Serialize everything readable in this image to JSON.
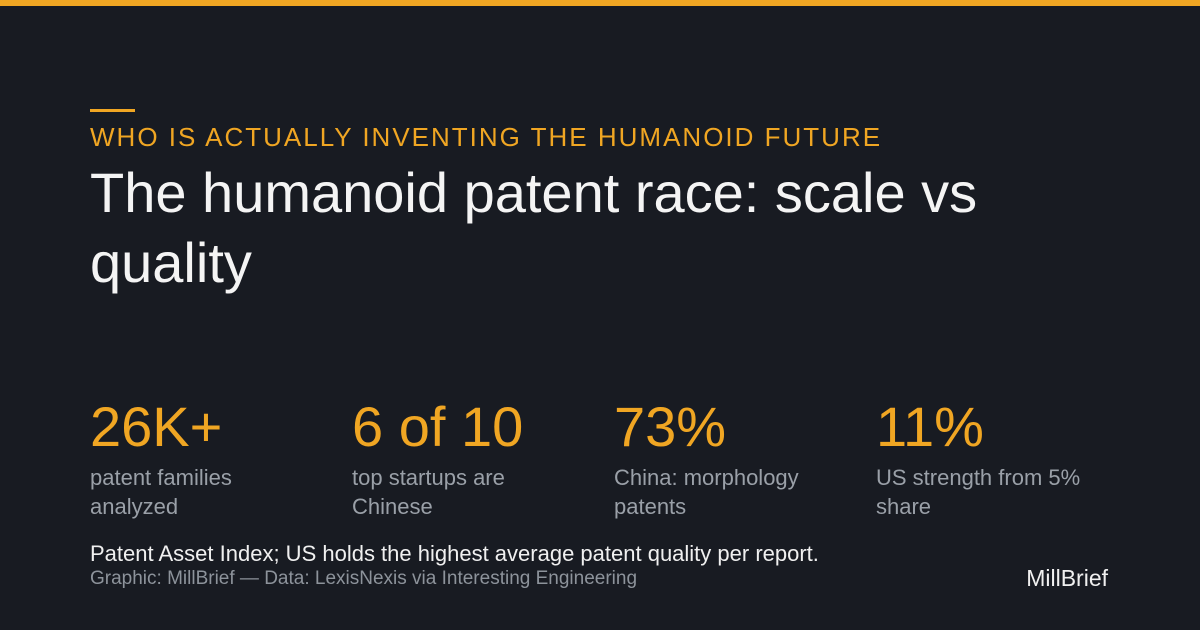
{
  "eyebrow": "WHO IS ACTUALLY INVENTING THE HUMANOID FUTURE",
  "title": "The humanoid patent race: scale vs quality",
  "stats": [
    {
      "value": "26K+",
      "label": "patent families analyzed"
    },
    {
      "value": "6 of 10",
      "label": "top startups are Chinese"
    },
    {
      "value": "73%",
      "label": "China: morphology patents"
    },
    {
      "value": "11%",
      "label": "US strength from 5% share"
    }
  ],
  "note": "Patent Asset Index; US holds the highest average patent quality per report.",
  "credit": "Graphic: MillBrief — Data: LexisNexis via Interesting Engineering",
  "brand": "MillBrief"
}
